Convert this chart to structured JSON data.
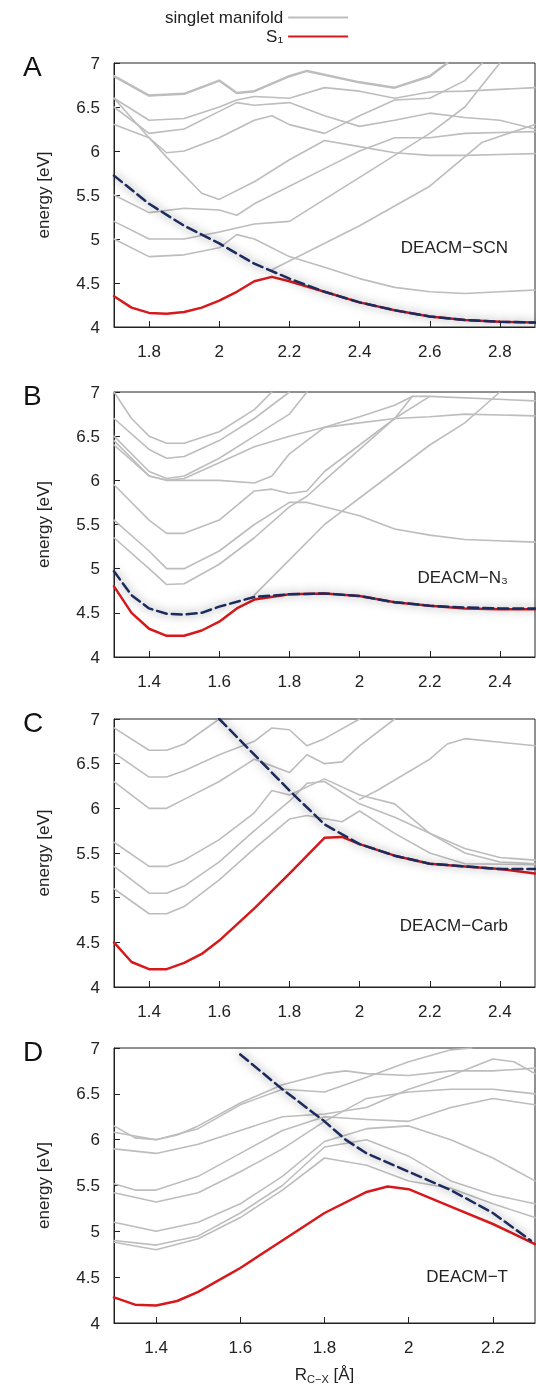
{
  "chart_data": [
    {
      "type": "line",
      "title": "A",
      "ylabel": "energy [eV]",
      "annotations": [
        "DEACM−SCN"
      ],
      "xlim": [
        1.7,
        2.9
      ],
      "xticks": [
        1.8,
        2,
        2.2,
        2.4,
        2.6,
        2.8
      ],
      "ylim": [
        4,
        7
      ],
      "yticks": [
        4,
        4.5,
        5,
        5.5,
        6,
        6.5,
        7
      ],
      "grid": false,
      "legend": "top",
      "marker": "none",
      "series": [
        {
          "name": "singlet manifold",
          "color": "#bdbdbd",
          "x": [
            1.7,
            1.8,
            1.9,
            2.0,
            2.05,
            2.1,
            2.2,
            2.25,
            2.4,
            2.5,
            2.6,
            2.65
          ],
          "values": [
            6.85,
            6.63,
            6.65,
            6.8,
            6.66,
            6.68,
            6.85,
            6.91,
            6.78,
            6.72,
            6.85,
            7.0
          ]
        },
        {
          "color": "#bdbdbd",
          "x": [
            1.7,
            1.8,
            1.9,
            2.0,
            2.05,
            2.1,
            2.2,
            2.3,
            2.4,
            2.5,
            2.6,
            2.7,
            2.9
          ],
          "values": [
            6.6,
            6.35,
            6.37,
            6.5,
            6.58,
            6.62,
            6.6,
            6.72,
            6.68,
            6.6,
            6.67,
            6.68,
            6.72
          ]
        },
        {
          "color": "#bdbdbd",
          "x": [
            1.7,
            1.8,
            1.9,
            2.0,
            2.05,
            2.1,
            2.2,
            2.3,
            2.4,
            2.5,
            2.6,
            2.7,
            2.8,
            2.9
          ],
          "values": [
            6.5,
            6.2,
            6.25,
            6.45,
            6.55,
            6.52,
            6.55,
            6.4,
            6.28,
            6.35,
            6.43,
            6.38,
            6.35,
            6.25
          ]
        },
        {
          "color": "#bdbdbd",
          "x": [
            1.7,
            1.8,
            1.85,
            1.9,
            2.0,
            2.1,
            2.15,
            2.2,
            2.3,
            2.4,
            2.5,
            2.6,
            2.7,
            2.75
          ],
          "values": [
            6.3,
            6.15,
            5.98,
            6.0,
            6.15,
            6.35,
            6.4,
            6.3,
            6.2,
            6.4,
            6.58,
            6.6,
            6.8,
            7.0
          ]
        },
        {
          "color": "#bdbdbd",
          "x": [
            1.7,
            1.8,
            1.85,
            1.95,
            2.0,
            2.1,
            2.2,
            2.3,
            2.4,
            2.5,
            2.6,
            2.7,
            2.9
          ],
          "values": [
            6.6,
            6.15,
            5.93,
            5.52,
            5.45,
            5.65,
            5.9,
            6.12,
            6.05,
            5.98,
            5.95,
            5.95,
            5.97
          ]
        },
        {
          "color": "#bdbdbd",
          "x": [
            1.7,
            1.8,
            1.9,
            2.0,
            2.05,
            2.1,
            2.2,
            2.3,
            2.4,
            2.5,
            2.6,
            2.7,
            2.9
          ],
          "values": [
            5.5,
            5.3,
            5.35,
            5.33,
            5.27,
            5.4,
            5.6,
            5.8,
            6.0,
            6.15,
            6.15,
            6.2,
            6.22
          ]
        },
        {
          "color": "#bdbdbd",
          "x": [
            1.7,
            1.8,
            1.9,
            2.0,
            2.1,
            2.2,
            2.3,
            2.4,
            2.5,
            2.6,
            2.7,
            2.8
          ],
          "values": [
            5.2,
            5.0,
            5.0,
            5.08,
            5.17,
            5.2,
            5.45,
            5.7,
            5.95,
            6.2,
            6.5,
            7.0
          ]
        },
        {
          "color": "#bdbdbd",
          "x": [
            1.7,
            1.8,
            1.9,
            2.0,
            2.05,
            2.1,
            2.2,
            2.3,
            2.4,
            2.5,
            2.6,
            2.7,
            2.9
          ],
          "values": [
            5.0,
            4.8,
            4.82,
            4.9,
            5.05,
            5.0,
            4.8,
            4.68,
            4.55,
            4.45,
            4.4,
            4.38,
            4.42
          ]
        },
        {
          "color": "#bdbdbd",
          "x": [
            2.15,
            2.4,
            2.6,
            2.75,
            2.9
          ],
          "values": [
            4.65,
            5.15,
            5.6,
            6.1,
            6.3
          ]
        },
        {
          "name": "S₁",
          "color": "#d7191c",
          "x": [
            1.7,
            1.75,
            1.8,
            1.85,
            1.9,
            1.95,
            2.0,
            2.05,
            2.1,
            2.15,
            2.2,
            2.3,
            2.4,
            2.5,
            2.6,
            2.7,
            2.8,
            2.9
          ],
          "values": [
            4.35,
            4.22,
            4.16,
            4.15,
            4.17,
            4.22,
            4.3,
            4.4,
            4.52,
            4.57,
            4.52,
            4.4,
            4.28,
            4.19,
            4.12,
            4.08,
            4.06,
            4.05
          ]
        },
        {
          "color": "#1b2a5c",
          "line_style": "dashed",
          "x": [
            1.7,
            1.8,
            1.9,
            2.0,
            2.1,
            2.2,
            2.3,
            2.4,
            2.5,
            2.6,
            2.7,
            2.8,
            2.9
          ],
          "values": [
            5.72,
            5.4,
            5.15,
            4.95,
            4.72,
            4.55,
            4.4,
            4.28,
            4.19,
            4.12,
            4.08,
            4.06,
            4.05
          ]
        }
      ]
    },
    {
      "type": "line",
      "title": "B",
      "ylabel": "energy [eV]",
      "annotations": [
        "DEACM−N₃"
      ],
      "xlim": [
        1.3,
        2.5
      ],
      "xticks": [
        1.4,
        1.6,
        1.8,
        2,
        2.2,
        2.4
      ],
      "ylim": [
        4,
        7
      ],
      "yticks": [
        4,
        4.5,
        5,
        5.5,
        6,
        6.5,
        7
      ],
      "grid": false,
      "marker": "none",
      "series": [
        {
          "color": "#bdbdbd",
          "x": [
            1.3,
            1.35,
            1.4,
            1.45,
            1.5,
            1.6,
            1.7,
            1.75
          ],
          "values": [
            7.0,
            6.7,
            6.5,
            6.42,
            6.42,
            6.55,
            6.8,
            7.0
          ]
        },
        {
          "color": "#bdbdbd",
          "x": [
            1.3,
            1.4,
            1.45,
            1.5,
            1.6,
            1.7,
            1.8
          ],
          "values": [
            6.7,
            6.35,
            6.25,
            6.27,
            6.45,
            6.7,
            7.0
          ]
        },
        {
          "color": "#bdbdbd",
          "x": [
            1.3,
            1.4,
            1.45,
            1.5,
            1.6,
            1.7,
            1.8,
            1.85
          ],
          "values": [
            6.5,
            6.1,
            6.02,
            6.05,
            6.25,
            6.5,
            6.75,
            7.0
          ]
        },
        {
          "color": "#bdbdbd",
          "x": [
            1.3,
            1.4,
            1.45,
            1.5,
            1.6,
            1.7,
            1.8,
            1.9,
            2.0,
            2.1,
            2.2,
            2.3,
            2.5
          ],
          "values": [
            6.45,
            6.05,
            6.0,
            6.02,
            6.2,
            6.38,
            6.5,
            6.6,
            6.65,
            6.7,
            6.72,
            6.75,
            6.73
          ]
        },
        {
          "color": "#bdbdbd",
          "x": [
            1.3,
            1.4,
            1.45,
            1.6,
            1.7,
            1.75,
            1.8,
            1.9,
            2.0,
            2.1,
            2.15,
            2.2,
            2.5
          ],
          "values": [
            6.4,
            6.05,
            6.0,
            6.0,
            5.97,
            6.05,
            6.3,
            6.6,
            6.72,
            6.85,
            6.95,
            6.95,
            6.9
          ]
        },
        {
          "color": "#bdbdbd",
          "x": [
            1.3,
            1.4,
            1.45,
            1.5,
            1.6,
            1.7,
            1.75,
            1.8,
            1.85,
            1.9,
            2.0,
            2.1,
            2.15
          ],
          "values": [
            5.95,
            5.55,
            5.4,
            5.4,
            5.55,
            5.88,
            5.9,
            5.85,
            5.88,
            6.1,
            6.4,
            6.7,
            6.95
          ]
        },
        {
          "color": "#bdbdbd",
          "x": [
            1.3,
            1.4,
            1.45,
            1.5,
            1.6,
            1.7,
            1.8,
            1.85,
            1.95,
            2.0,
            2.1,
            2.2,
            2.3,
            2.5
          ],
          "values": [
            5.55,
            5.2,
            5.0,
            5.0,
            5.2,
            5.5,
            5.75,
            5.75,
            5.65,
            5.6,
            5.45,
            5.38,
            5.33,
            5.3
          ]
        },
        {
          "color": "#bdbdbd",
          "x": [
            1.3,
            1.4,
            1.45,
            1.5,
            1.6,
            1.7,
            1.8,
            1.85,
            1.9,
            2.0,
            2.1,
            2.2
          ],
          "values": [
            5.35,
            5.0,
            4.82,
            4.83,
            5.05,
            5.35,
            5.7,
            5.82,
            6.0,
            6.35,
            6.7,
            6.95
          ]
        },
        {
          "color": "#bdbdbd",
          "x": [
            1.7,
            1.8,
            1.9,
            2.0,
            2.1,
            2.2,
            2.3,
            2.4
          ],
          "values": [
            4.7,
            5.1,
            5.5,
            5.8,
            6.1,
            6.4,
            6.65,
            7.0
          ]
        },
        {
          "color": "#d7191c",
          "x": [
            1.3,
            1.35,
            1.4,
            1.45,
            1.5,
            1.55,
            1.6,
            1.65,
            1.7,
            1.8,
            1.9,
            2.0,
            2.1,
            2.2,
            2.3,
            2.4,
            2.5
          ],
          "values": [
            4.8,
            4.5,
            4.32,
            4.24,
            4.24,
            4.3,
            4.4,
            4.55,
            4.65,
            4.71,
            4.72,
            4.69,
            4.62,
            4.58,
            4.55,
            4.54,
            4.54
          ]
        },
        {
          "color": "#1b2a5c",
          "line_style": "dashed",
          "x": [
            1.3,
            1.35,
            1.4,
            1.45,
            1.5,
            1.55,
            1.6,
            1.7,
            1.8,
            1.9,
            2.0,
            2.1,
            2.2,
            2.3,
            2.4,
            2.5
          ],
          "values": [
            4.97,
            4.7,
            4.55,
            4.49,
            4.48,
            4.5,
            4.57,
            4.68,
            4.71,
            4.72,
            4.69,
            4.62,
            4.58,
            4.56,
            4.55,
            4.55
          ]
        }
      ]
    },
    {
      "type": "line",
      "title": "C",
      "ylabel": "energy [eV]",
      "annotations": [
        "DEACM−Carb"
      ],
      "xlim": [
        1.3,
        2.5
      ],
      "xticks": [
        1.4,
        1.6,
        1.8,
        2,
        2.2,
        2.4
      ],
      "ylim": [
        4,
        7
      ],
      "yticks": [
        4,
        4.5,
        5,
        5.5,
        6,
        6.5,
        7
      ],
      "grid": false,
      "marker": "none",
      "series": [
        {
          "color": "#bdbdbd",
          "x": [
            1.3,
            1.4,
            1.45,
            1.5,
            1.6
          ],
          "values": [
            6.9,
            6.65,
            6.65,
            6.72,
            7.0
          ]
        },
        {
          "color": "#bdbdbd",
          "x": [
            1.3,
            1.4,
            1.45,
            1.5,
            1.6,
            1.7,
            1.75,
            1.8,
            1.85,
            1.9,
            2.0
          ],
          "values": [
            6.62,
            6.35,
            6.35,
            6.42,
            6.6,
            6.75,
            6.9,
            6.88,
            6.7,
            6.78,
            7.0
          ]
        },
        {
          "color": "#bdbdbd",
          "x": [
            1.3,
            1.4,
            1.45,
            1.5,
            1.6,
            1.7,
            1.8,
            1.85,
            1.9,
            1.95,
            2.0,
            2.1
          ],
          "values": [
            6.3,
            6.0,
            6.0,
            6.1,
            6.3,
            6.55,
            6.4,
            6.6,
            6.5,
            6.52,
            6.7,
            7.0
          ]
        },
        {
          "color": "#bdbdbd",
          "x": [
            1.3,
            1.4,
            1.45,
            1.5,
            1.6,
            1.7,
            1.75,
            1.8,
            1.9,
            2.0,
            2.1,
            2.2,
            2.3,
            2.4,
            2.5
          ],
          "values": [
            5.62,
            5.35,
            5.35,
            5.42,
            5.65,
            5.95,
            6.2,
            6.15,
            6.33,
            6.15,
            6.05,
            5.72,
            5.55,
            5.45,
            5.42
          ]
        },
        {
          "color": "#bdbdbd",
          "x": [
            1.3,
            1.4,
            1.45,
            1.5,
            1.6,
            1.7,
            1.8,
            1.85,
            1.9,
            2.0,
            2.1,
            2.2,
            2.3,
            2.4,
            2.5
          ],
          "values": [
            5.35,
            5.05,
            5.05,
            5.13,
            5.4,
            5.75,
            6.08,
            6.28,
            6.3,
            6.05,
            5.9,
            5.72,
            5.5,
            5.4,
            5.38
          ]
        },
        {
          "color": "#bdbdbd",
          "x": [
            1.3,
            1.4,
            1.45,
            1.5,
            1.6,
            1.7,
            1.8,
            1.85,
            1.95,
            2.0,
            2.1,
            2.2,
            2.3,
            2.5
          ],
          "values": [
            5.1,
            4.82,
            4.82,
            4.9,
            5.2,
            5.55,
            5.88,
            5.92,
            5.85,
            5.97,
            5.72,
            5.5,
            5.38,
            5.37
          ]
        },
        {
          "color": "#bdbdbd",
          "x": [
            2.0,
            2.05,
            2.2,
            2.25,
            2.3,
            2.5
          ],
          "values": [
            6.1,
            6.2,
            6.55,
            6.72,
            6.78,
            6.7
          ]
        },
        {
          "color": "#d7191c",
          "x": [
            1.3,
            1.35,
            1.4,
            1.45,
            1.5,
            1.55,
            1.6,
            1.7,
            1.8,
            1.9,
            1.95,
            2.0,
            2.1,
            2.2,
            2.3,
            2.4,
            2.5
          ],
          "values": [
            4.5,
            4.28,
            4.2,
            4.2,
            4.27,
            4.37,
            4.52,
            4.88,
            5.27,
            5.67,
            5.68,
            5.6,
            5.47,
            5.38,
            5.35,
            5.32,
            5.27
          ]
        },
        {
          "color": "#1b2a5c",
          "line_style": "dashed",
          "x": [
            1.6,
            1.7,
            1.8,
            1.9,
            2.0,
            2.1,
            2.2,
            2.3,
            2.4,
            2.5
          ],
          "values": [
            7.0,
            6.6,
            6.2,
            5.82,
            5.6,
            5.47,
            5.38,
            5.35,
            5.32,
            5.32
          ]
        }
      ]
    },
    {
      "type": "line",
      "title": "D",
      "xlabel": "R$_{C−X}$ [Å]",
      "ylabel": "energy [eV]",
      "annotations": [
        "DEACM−T"
      ],
      "xlim": [
        1.3,
        2.3
      ],
      "xticks": [
        1.4,
        1.6,
        1.8,
        2,
        2.2
      ],
      "ylim": [
        4,
        7
      ],
      "yticks": [
        4,
        4.5,
        5,
        5.5,
        6,
        6.5,
        7
      ],
      "grid": false,
      "marker": "none",
      "series": [
        {
          "color": "#bdbdbd",
          "x": [
            1.3,
            1.35,
            1.4,
            1.45,
            1.5,
            1.6,
            1.7,
            1.8,
            1.85,
            1.9,
            2.0,
            2.1,
            2.2,
            2.3
          ],
          "values": [
            6.15,
            6.02,
            6.0,
            6.05,
            6.15,
            6.4,
            6.6,
            6.72,
            6.75,
            6.72,
            6.7,
            6.75,
            6.75,
            6.78
          ]
        },
        {
          "color": "#bdbdbd",
          "x": [
            1.3,
            1.4,
            1.5,
            1.6,
            1.7,
            1.8,
            1.9,
            2.0,
            2.1,
            2.15
          ],
          "values": [
            6.08,
            6.0,
            6.12,
            6.38,
            6.55,
            6.52,
            6.68,
            6.85,
            6.98,
            7.0
          ]
        },
        {
          "color": "#bdbdbd",
          "x": [
            1.3,
            1.4,
            1.5,
            1.6,
            1.7,
            1.8,
            1.9,
            2.0,
            2.1,
            2.2,
            2.25,
            2.3
          ],
          "values": [
            5.9,
            5.85,
            5.95,
            6.1,
            6.25,
            6.28,
            6.35,
            6.55,
            6.7,
            6.88,
            6.85,
            6.72
          ]
        },
        {
          "color": "#bdbdbd",
          "x": [
            1.3,
            1.35,
            1.4,
            1.5,
            1.6,
            1.7,
            1.8,
            1.9,
            2.0,
            2.1,
            2.2,
            2.3
          ],
          "values": [
            5.52,
            5.45,
            5.45,
            5.6,
            5.85,
            6.1,
            6.25,
            6.22,
            6.2,
            6.35,
            6.45,
            6.38
          ]
        },
        {
          "color": "#bdbdbd",
          "x": [
            1.3,
            1.4,
            1.5,
            1.6,
            1.7,
            1.8,
            1.9,
            2.0,
            2.1,
            2.2,
            2.3
          ],
          "values": [
            5.42,
            5.32,
            5.42,
            5.65,
            5.9,
            6.2,
            6.45,
            6.52,
            6.55,
            6.55,
            6.5
          ]
        },
        {
          "color": "#bdbdbd",
          "x": [
            1.3,
            1.4,
            1.5,
            1.6,
            1.7,
            1.8,
            1.9,
            2.0,
            2.1,
            2.2,
            2.3
          ],
          "values": [
            5.1,
            5.0,
            5.1,
            5.3,
            5.6,
            5.98,
            6.12,
            6.15,
            6.0,
            5.8,
            5.55
          ]
        },
        {
          "color": "#bdbdbd",
          "x": [
            1.3,
            1.4,
            1.5,
            1.6,
            1.7,
            1.8,
            1.9,
            2.0,
            2.1,
            2.2,
            2.3
          ],
          "values": [
            4.9,
            4.85,
            4.95,
            5.2,
            5.5,
            5.92,
            6.0,
            5.82,
            5.55,
            5.4,
            5.3
          ]
        },
        {
          "color": "#bdbdbd",
          "x": [
            1.3,
            1.4,
            1.5,
            1.6,
            1.7,
            1.8,
            1.9,
            2.0,
            2.1,
            2.2,
            2.3
          ],
          "values": [
            4.88,
            4.8,
            4.92,
            5.15,
            5.45,
            5.8,
            5.72,
            5.55,
            5.47,
            5.3,
            5.15
          ]
        },
        {
          "color": "#d7191c",
          "x": [
            1.3,
            1.35,
            1.4,
            1.45,
            1.5,
            1.6,
            1.7,
            1.8,
            1.9,
            1.95,
            2.0,
            2.1,
            2.2,
            2.3
          ],
          "values": [
            4.28,
            4.2,
            4.19,
            4.24,
            4.34,
            4.6,
            4.9,
            5.2,
            5.43,
            5.49,
            5.46,
            5.27,
            5.08,
            4.86
          ]
        },
        {
          "color": "#1b2a5c",
          "line_style": "dashed",
          "x": [
            1.6,
            1.7,
            1.8,
            1.85,
            1.9,
            2.0,
            2.1,
            2.2,
            2.29
          ],
          "values": [
            6.93,
            6.55,
            6.2,
            6.0,
            5.85,
            5.65,
            5.45,
            5.2,
            4.9
          ]
        }
      ]
    }
  ]
}
